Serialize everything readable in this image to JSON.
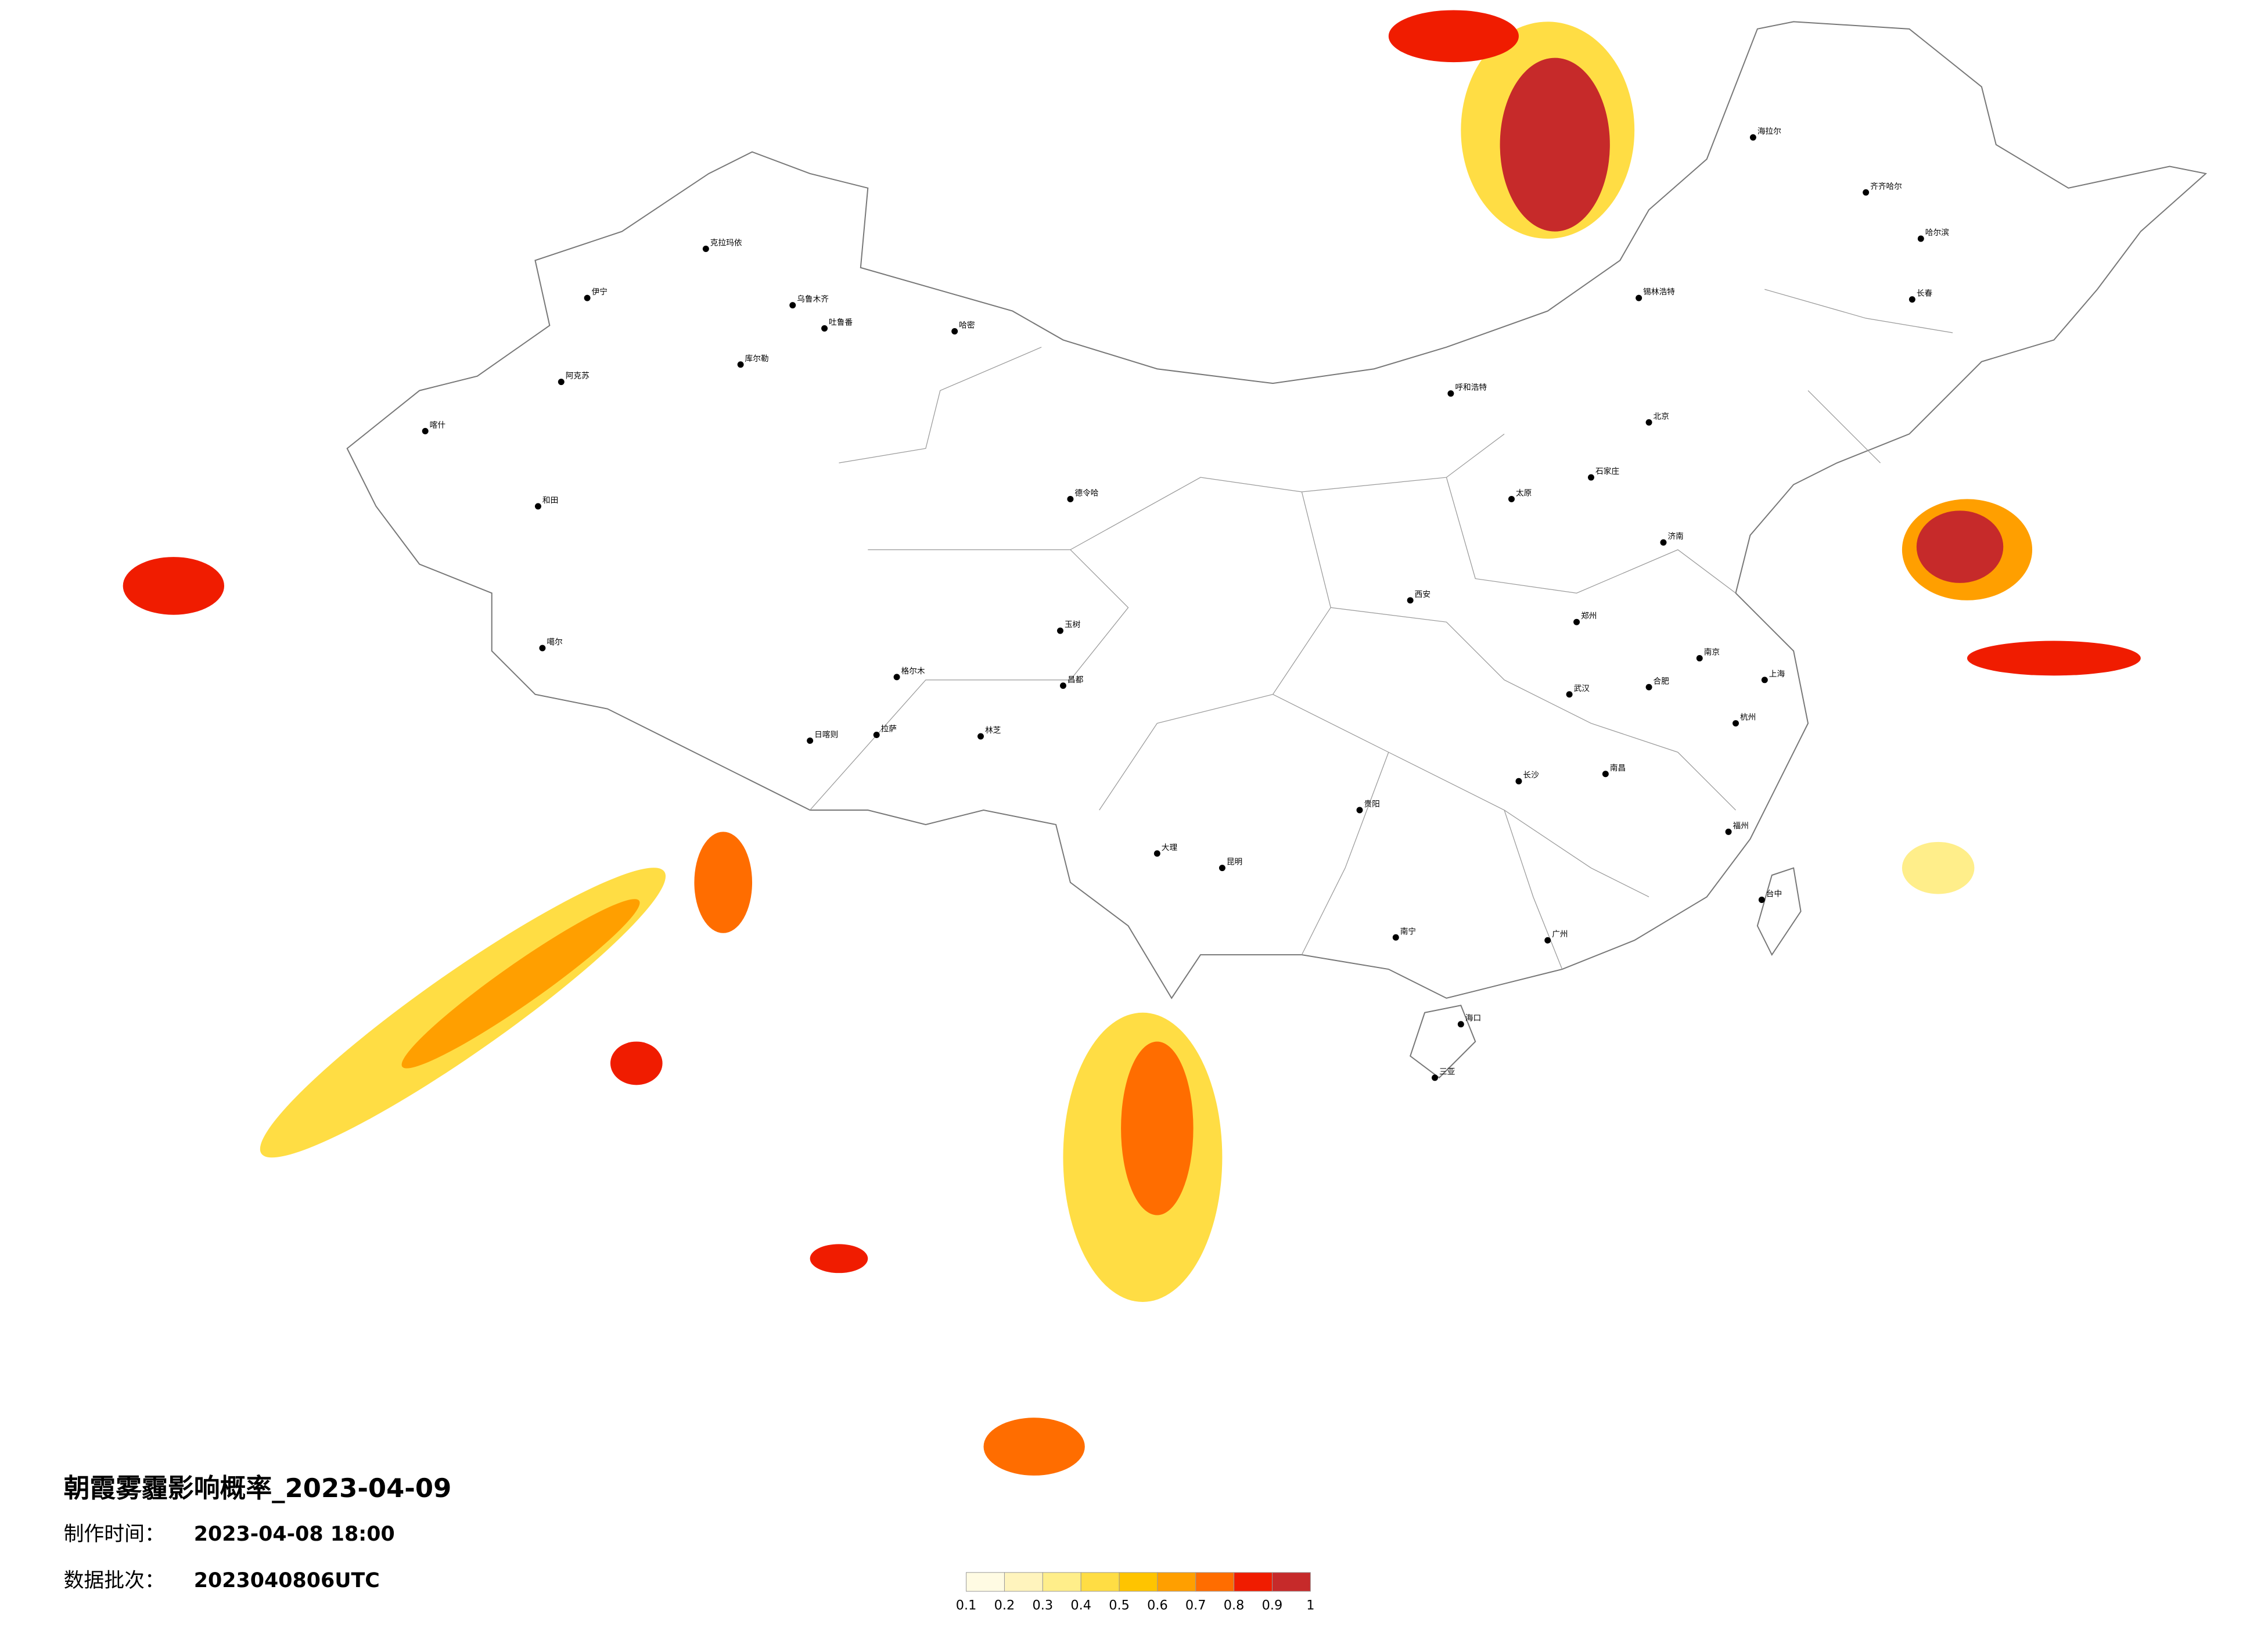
{
  "title": "朝霞雾霾影响概率_2023-04-09",
  "made_time_label": "制作时间：",
  "made_time": "2023-04-08 18:00",
  "batch_label": "数据批次：",
  "batch": "2023040806UTC",
  "colorbar": {
    "ticks": [
      0.1,
      0.2,
      0.3,
      0.4,
      0.5,
      0.6,
      0.7,
      0.8,
      0.9,
      1
    ],
    "colors": [
      "#fffbe3",
      "#fff4bd",
      "#ffee8a",
      "#ffdd44",
      "#ffc400",
      "#ff9f00",
      "#ff6d00",
      "#f01c00",
      "#c62a2a"
    ]
  },
  "cities": [
    "克拉玛依",
    "乌鲁木齐",
    "吐鲁番",
    "哈密",
    "库尔勒",
    "伊宁",
    "阿克苏",
    "喀什",
    "和田",
    "噶尔",
    "日喀则",
    "拉萨",
    "林芝",
    "昌都",
    "格尔木",
    "德令哈",
    "玉树",
    "海拉尔",
    "齐齐哈尔",
    "哈尔滨",
    "长春",
    "锡林浩特",
    "呼和浩特",
    "北京",
    "石家庄",
    "太原",
    "济南",
    "郑州",
    "西安",
    "武汉",
    "合肥",
    "南京",
    "上海",
    "杭州",
    "长沙",
    "南昌",
    "福州",
    "贵阳",
    "昆明",
    "大理",
    "南宁",
    "广州",
    "海口",
    "三亚",
    "台中"
  ]
}
